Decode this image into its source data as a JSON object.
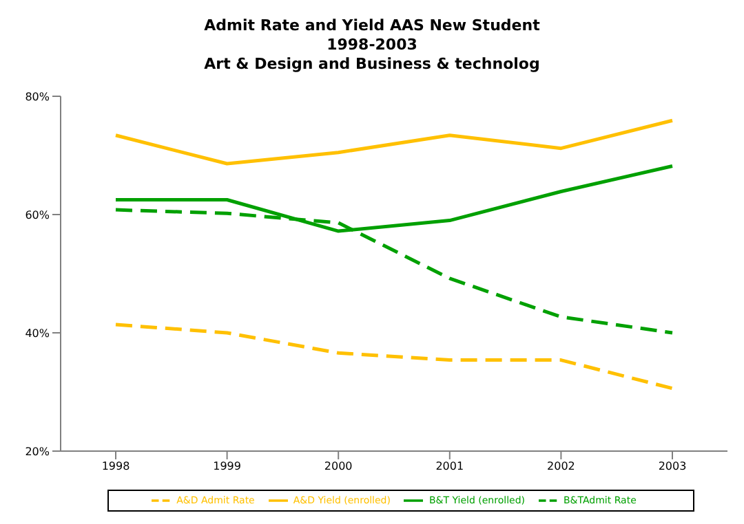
{
  "chart_data": {
    "type": "line",
    "title": "Admit Rate and Yield AAS New Student\n1998-2003\nArt & Design and Business & technolog",
    "categories": [
      "1998",
      "1999",
      "2000",
      "2001",
      "2002",
      "2003"
    ],
    "series": [
      {
        "name": "A&D Admit Rate",
        "color": "#ffc000",
        "line_style": "dashed",
        "values": [
          41.4,
          40.0,
          36.6,
          35.4,
          35.4,
          30.6
        ]
      },
      {
        "name": "A&D Yield (enrolled)",
        "color": "#ffc000",
        "line_style": "solid",
        "values": [
          73.4,
          68.6,
          70.5,
          73.4,
          71.2,
          75.9
        ]
      },
      {
        "name": "B&TAdmit Rate",
        "color": "#00a000",
        "line_style": "dashed",
        "values": [
          60.8,
          60.2,
          58.6,
          49.2,
          42.7,
          40.0
        ]
      },
      {
        "name": "B&T Yield (enrolled)",
        "color": "#00a000",
        "line_style": "solid",
        "values": [
          62.5,
          62.5,
          57.2,
          59.0,
          63.9,
          68.2
        ]
      }
    ],
    "ylim": [
      20,
      80
    ],
    "yticks": [
      {
        "value": 20,
        "label": "20%"
      },
      {
        "value": 40,
        "label": "40%"
      },
      {
        "value": 60,
        "label": "60%"
      },
      {
        "value": 80,
        "label": "80%"
      }
    ],
    "grid": false,
    "legend": "bottom",
    "marker": "none"
  }
}
